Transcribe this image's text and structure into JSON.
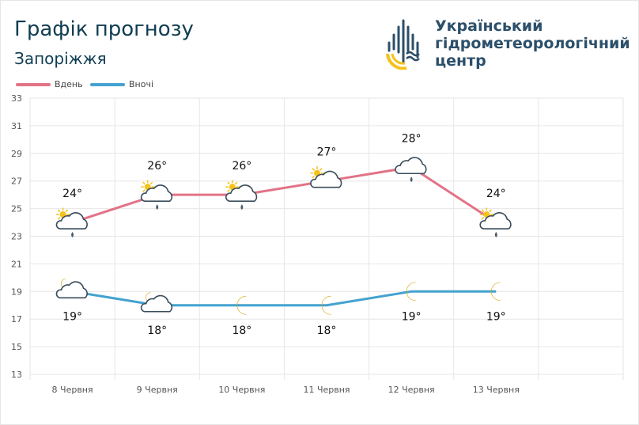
{
  "header": {
    "title": "Графік прогнозу",
    "city": "Запоріжжя"
  },
  "logo": {
    "name": "ukrhydromet-logo",
    "text_lines": [
      "Український",
      "гідрометеорологічний",
      "центр"
    ]
  },
  "colors": {
    "day": "#e27387",
    "night": "#44a2cf",
    "grid": "#e6e6e6",
    "title": "#0f3d52",
    "logo_text": "#2c4f6a",
    "logo_dark": "#2c4f6a",
    "logo_yellow": "#f5c21a"
  },
  "chart_data": {
    "type": "line",
    "categories": [
      "8 Червня",
      "9 Червня",
      "10 Червня",
      "11 Червня",
      "12 Червня",
      "13 Червня"
    ],
    "series": [
      {
        "name": "Вдень",
        "color": "#e27387",
        "values": [
          24,
          26,
          26,
          27,
          28,
          24
        ],
        "labels": [
          "24°",
          "26°",
          "26°",
          "27°",
          "28°",
          "24°"
        ],
        "icons": [
          "sun-cloud-rain",
          "sun-cloud-rain",
          "sun-cloud-rain",
          "sun-cloud",
          "cloud-rain",
          "sun-cloud-rain"
        ]
      },
      {
        "name": "Вночі",
        "color": "#44a2cf",
        "values": [
          19,
          18,
          18,
          18,
          19,
          19
        ],
        "labels": [
          "19°",
          "18°",
          "18°",
          "18°",
          "19°",
          "19°"
        ],
        "icons": [
          "moon-cloud",
          "moon-cloud",
          "moon",
          "moon",
          "moon",
          "moon"
        ]
      }
    ],
    "y_ticks": [
      "13",
      "15",
      "17",
      "19",
      "21",
      "23",
      "25",
      "27",
      "29",
      "31",
      "33"
    ],
    "ylim": [
      13,
      33
    ],
    "x_slots": 7,
    "grid": true,
    "legend_position": "top-left"
  }
}
